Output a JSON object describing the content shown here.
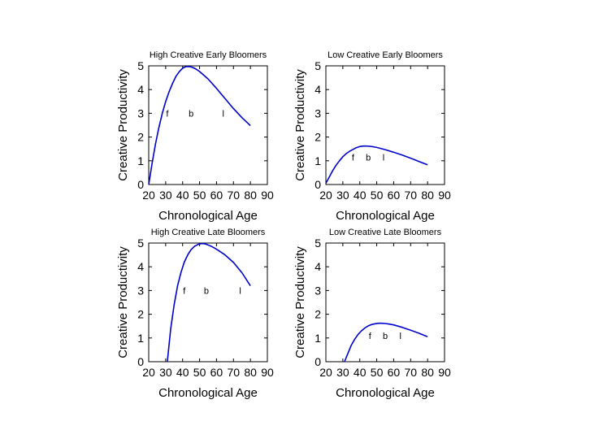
{
  "chart_data": [
    {
      "type": "line",
      "title": "High Creative Early Bloomers",
      "xlabel": "Chronological Age",
      "ylabel": "Creative Productivity",
      "xlim": [
        20,
        90
      ],
      "ylim": [
        0,
        5
      ],
      "xticks": [
        20,
        30,
        40,
        50,
        60,
        70,
        80,
        90
      ],
      "yticks": [
        0,
        1,
        2,
        3,
        4,
        5
      ],
      "grid": false,
      "color": "#0000cc",
      "series": [
        {
          "x": [
            20,
            22,
            24,
            26,
            28,
            30,
            32,
            34,
            36,
            38,
            40,
            42,
            44,
            46,
            48,
            50,
            55,
            60,
            65,
            70,
            75,
            80
          ],
          "y": [
            0,
            0.9,
            1.7,
            2.4,
            3.0,
            3.5,
            3.9,
            4.25,
            4.55,
            4.75,
            4.9,
            4.97,
            4.97,
            4.93,
            4.86,
            4.76,
            4.45,
            4.05,
            3.62,
            3.2,
            2.82,
            2.48
          ]
        }
      ],
      "annotations": [
        {
          "text": "f",
          "x": 31,
          "y": 3
        },
        {
          "text": "b",
          "x": 45,
          "y": 3
        },
        {
          "text": "l",
          "x": 64,
          "y": 3
        }
      ]
    },
    {
      "type": "line",
      "title": "Low Creative Early Bloomers",
      "xlabel": "Chronological Age",
      "ylabel": "Creative Productivity",
      "xlim": [
        20,
        90
      ],
      "ylim": [
        0,
        5
      ],
      "xticks": [
        20,
        30,
        40,
        50,
        60,
        70,
        80,
        90
      ],
      "yticks": [
        0,
        1,
        2,
        3,
        4,
        5
      ],
      "grid": false,
      "color": "#0000cc",
      "series": [
        {
          "x": [
            20,
            22,
            24,
            26,
            28,
            30,
            32,
            34,
            36,
            38,
            40,
            42,
            44,
            46,
            48,
            50,
            55,
            60,
            65,
            70,
            75,
            80
          ],
          "y": [
            0.05,
            0.32,
            0.58,
            0.81,
            1.0,
            1.17,
            1.3,
            1.4,
            1.48,
            1.55,
            1.6,
            1.62,
            1.62,
            1.61,
            1.59,
            1.56,
            1.47,
            1.36,
            1.24,
            1.11,
            0.97,
            0.83
          ]
        }
      ],
      "annotations": [
        {
          "text": "f",
          "x": 36,
          "y": 1.15
        },
        {
          "text": "b",
          "x": 45,
          "y": 1.15
        },
        {
          "text": "l",
          "x": 54,
          "y": 1.15
        }
      ]
    },
    {
      "type": "line",
      "title": "High Creative Late Bloomers",
      "xlabel": "Chronological Age",
      "ylabel": "Creative Productivity",
      "xlim": [
        20,
        90
      ],
      "ylim": [
        0,
        5
      ],
      "xticks": [
        20,
        30,
        40,
        50,
        60,
        70,
        80,
        90
      ],
      "yticks": [
        0,
        1,
        2,
        3,
        4,
        5
      ],
      "grid": false,
      "color": "#0000cc",
      "series": [
        {
          "x": [
            31,
            33,
            35,
            37,
            39,
            41,
            43,
            45,
            47,
            49,
            51,
            53,
            55,
            57,
            60,
            65,
            70,
            75,
            80
          ],
          "y": [
            0,
            1.4,
            2.4,
            3.2,
            3.75,
            4.2,
            4.5,
            4.72,
            4.86,
            4.94,
            4.98,
            4.97,
            4.92,
            4.86,
            4.74,
            4.5,
            4.18,
            3.75,
            3.2
          ]
        }
      ],
      "annotations": [
        {
          "text": "f",
          "x": 41,
          "y": 3
        },
        {
          "text": "b",
          "x": 54,
          "y": 3
        },
        {
          "text": "l",
          "x": 74,
          "y": 3
        }
      ]
    },
    {
      "type": "line",
      "title": "Low Creative Late Bloomers",
      "xlabel": "Chronological Age",
      "ylabel": "Creative Productivity",
      "xlim": [
        20,
        90
      ],
      "ylim": [
        0,
        5
      ],
      "xticks": [
        20,
        30,
        40,
        50,
        60,
        70,
        80,
        90
      ],
      "yticks": [
        0,
        1,
        2,
        3,
        4,
        5
      ],
      "grid": false,
      "color": "#0000cc",
      "series": [
        {
          "x": [
            31,
            33,
            35,
            37,
            39,
            41,
            43,
            45,
            47,
            49,
            51,
            53,
            55,
            57,
            60,
            65,
            70,
            75,
            80
          ],
          "y": [
            0,
            0.35,
            0.7,
            0.95,
            1.15,
            1.3,
            1.42,
            1.51,
            1.57,
            1.6,
            1.62,
            1.62,
            1.61,
            1.59,
            1.55,
            1.45,
            1.33,
            1.2,
            1.05
          ]
        }
      ],
      "annotations": [
        {
          "text": "f",
          "x": 46,
          "y": 1.1
        },
        {
          "text": "b",
          "x": 55,
          "y": 1.1
        },
        {
          "text": "l",
          "x": 64,
          "y": 1.1
        }
      ]
    }
  ]
}
